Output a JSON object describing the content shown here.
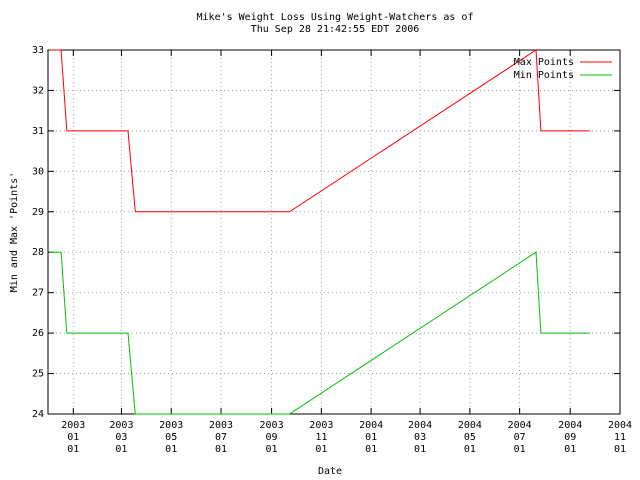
{
  "chart_data": {
    "type": "line",
    "title": "Mike's Weight Loss Using Weight-Watchers as of\nThu Sep 28 21:42:55 EDT 2006",
    "xlabel": "Date",
    "ylabel": "Min and Max 'Points'",
    "x": [
      "2002-12-03",
      "2002-12-17",
      "2002-12-24",
      "2003-03-09",
      "2003-03-18",
      "2003-09-23",
      "2004-07-21",
      "2004-07-27",
      "2004-09-25"
    ],
    "series": [
      {
        "name": "Max Points",
        "color": "#ff0000",
        "values": [
          33,
          33,
          31,
          31,
          29,
          29,
          33,
          31,
          31
        ]
      },
      {
        "name": "Min Points",
        "color": "#00c000",
        "values": [
          28,
          28,
          26,
          26,
          24,
          24,
          28,
          26,
          26
        ]
      }
    ],
    "xlim": [
      "2002-12-01",
      "2004-11-01"
    ],
    "xticks": [
      {
        "value": "2003-01-01",
        "label": "2003\n01\n01"
      },
      {
        "value": "2003-03-01",
        "label": "2003\n03\n01"
      },
      {
        "value": "2003-05-01",
        "label": "2003\n05\n01"
      },
      {
        "value": "2003-07-01",
        "label": "2003\n07\n01"
      },
      {
        "value": "2003-09-01",
        "label": "2003\n09\n01"
      },
      {
        "value": "2003-11-01",
        "label": "2003\n11\n01"
      },
      {
        "value": "2004-01-01",
        "label": "2004\n01\n01"
      },
      {
        "value": "2004-03-01",
        "label": "2004\n03\n01"
      },
      {
        "value": "2004-05-01",
        "label": "2004\n05\n01"
      },
      {
        "value": "2004-07-01",
        "label": "2004\n07\n01"
      },
      {
        "value": "2004-09-01",
        "label": "2004\n09\n01"
      },
      {
        "value": "2004-11-01",
        "label": "2004\n11\n01"
      }
    ],
    "ylim": [
      24,
      33
    ],
    "yticks": [
      24,
      25,
      26,
      27,
      28,
      29,
      30,
      31,
      32,
      33
    ],
    "grid": true,
    "legend": "top-right"
  }
}
